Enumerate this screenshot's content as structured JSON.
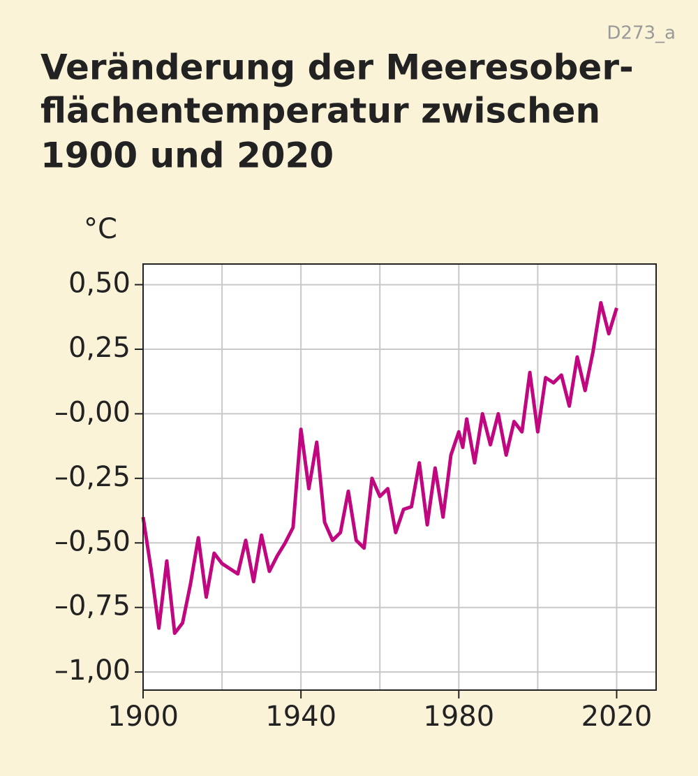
{
  "chart_data": {
    "type": "line",
    "code": "D273_a",
    "title": [
      "Veränderung der Meeresober-",
      "flächentemperatur zwischen",
      "1900 und 2020"
    ],
    "y_label": "°C",
    "x": [
      1900,
      1902,
      1904,
      1906,
      1908,
      1910,
      1912,
      1914,
      1916,
      1918,
      1920,
      1922,
      1924,
      1926,
      1928,
      1930,
      1932,
      1934,
      1936,
      1938,
      1940,
      1942,
      1944,
      1946,
      1948,
      1950,
      1952,
      1954,
      1956,
      1958,
      1960,
      1962,
      1964,
      1966,
      1968,
      1970,
      1972,
      1974,
      1976,
      1978,
      1980,
      1981,
      1982,
      1984,
      1986,
      1988,
      1990,
      1992,
      1994,
      1996,
      1998,
      2000,
      2002,
      2004,
      2006,
      2008,
      2010,
      2012,
      2014,
      2016,
      2018,
      2020
    ],
    "series": [
      {
        "color": "#c0077f",
        "values": [
          -0.4,
          -0.6,
          -0.83,
          -0.57,
          -0.85,
          -0.81,
          -0.66,
          -0.48,
          -0.71,
          -0.54,
          -0.58,
          -0.6,
          -0.62,
          -0.49,
          -0.65,
          -0.47,
          -0.61,
          -0.55,
          -0.5,
          -0.44,
          -0.06,
          -0.29,
          -0.11,
          -0.42,
          -0.49,
          -0.46,
          -0.3,
          -0.49,
          -0.52,
          -0.25,
          -0.32,
          -0.29,
          -0.46,
          -0.37,
          -0.36,
          -0.19,
          -0.43,
          -0.21,
          -0.4,
          -0.16,
          -0.07,
          -0.13,
          -0.02,
          -0.19,
          0.0,
          -0.12,
          0.0,
          -0.16,
          -0.03,
          -0.07,
          0.16,
          -0.07,
          0.14,
          0.12,
          0.15,
          0.03,
          0.22,
          0.09,
          0.24,
          0.43,
          0.31,
          0.41
        ]
      }
    ],
    "xlim": [
      1900,
      2030
    ],
    "xticks": [
      1900,
      1940,
      1980,
      2020
    ],
    "xgrid": [
      1920,
      1940,
      1960,
      1980,
      2000,
      2020
    ],
    "ylim": [
      -1.07,
      0.58
    ],
    "yticks": [
      {
        "value": 0.5,
        "label": "0,50"
      },
      {
        "value": 0.25,
        "label": "0,25"
      },
      {
        "value": 0,
        "label": "–0,00"
      },
      {
        "value": -0.25,
        "label": "–0,25"
      },
      {
        "value": -0.5,
        "label": "–0,50"
      },
      {
        "value": -0.75,
        "label": "–0,75"
      },
      {
        "value": -1,
        "label": "–1,00"
      }
    ],
    "grid": true
  }
}
